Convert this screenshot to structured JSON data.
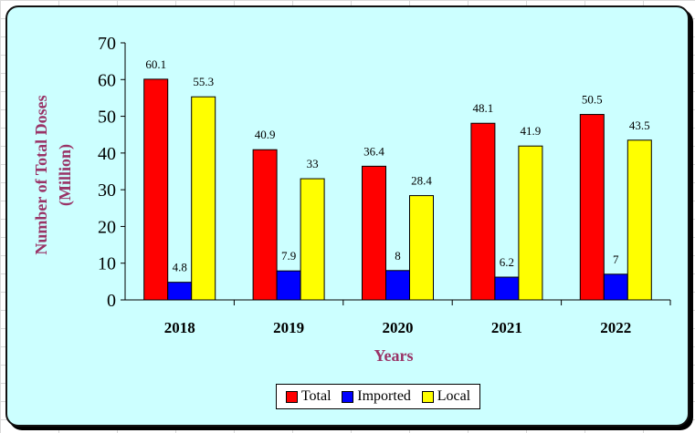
{
  "chart_data": {
    "type": "bar",
    "categories": [
      "2018",
      "2019",
      "2020",
      "2021",
      "2022"
    ],
    "series": [
      {
        "name": "Total",
        "color": "#ff0000",
        "values": [
          60.1,
          40.9,
          36.4,
          48.1,
          50.5
        ],
        "labels": [
          "60.1",
          "40.9",
          "36.4",
          "48.1",
          "50.5"
        ]
      },
      {
        "name": "Imported",
        "color": "#0000ff",
        "values": [
          4.8,
          7.9,
          8,
          6.2,
          7
        ],
        "labels": [
          "4.8",
          "7.9",
          "8",
          "6.2",
          "7"
        ]
      },
      {
        "name": "Local",
        "color": "#ffff00",
        "values": [
          55.3,
          33,
          28.4,
          41.9,
          43.5
        ],
        "labels": [
          "55.3",
          "33",
          "28.4",
          "41.9",
          "43.5"
        ]
      }
    ],
    "title": "",
    "xlabel": "Years",
    "ylabel": "Number of Total Doses",
    "ylabel2": "(Million)",
    "ylim": [
      0,
      70
    ],
    "yticks": [
      "0",
      "10",
      "20",
      "30",
      "40",
      "50",
      "60",
      "70"
    ],
    "grid": false,
    "legend_position": "bottom",
    "label_color": "#993366",
    "background_color": "#ccffff"
  }
}
